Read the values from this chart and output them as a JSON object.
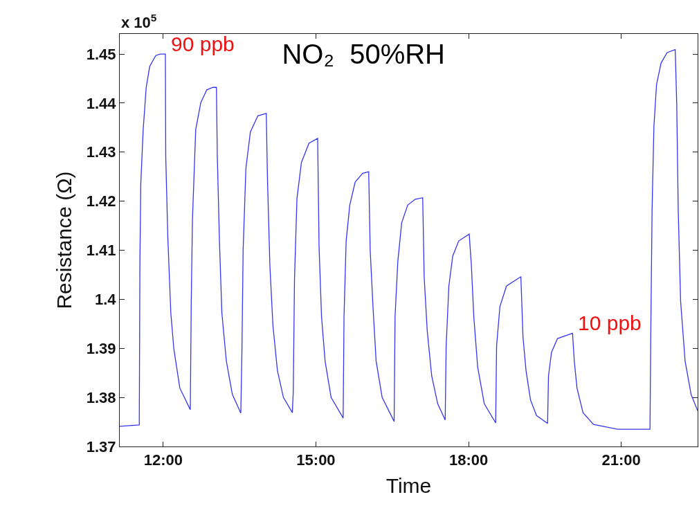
{
  "chart_data": {
    "type": "line",
    "title": "NO₂  50%RH",
    "xlabel": "Time",
    "ylabel": "Resistance (Ω)",
    "annotations": [
      "x 10$^{5}$",
      {
        "text": "90 ppb",
        "x": 12.042,
        "y": 1.45
      },
      {
        "text": "10 ppb",
        "x": 20.042,
        "y": 1.3931
      }
    ],
    "xlim": [
      11.145,
      22.5
    ],
    "ylim": [
      1.37,
      1.4541
    ],
    "xticks": [
      {
        "value": 12,
        "label": "12:00"
      },
      {
        "value": 15,
        "label": "15:00"
      },
      {
        "value": 18,
        "label": "18:00"
      },
      {
        "value": 21,
        "label": "21:00"
      }
    ],
    "yticks": [
      1.37,
      1.38,
      1.39,
      1.4,
      1.41,
      1.42,
      1.43,
      1.44,
      1.45
    ],
    "grid": false,
    "marker": "none",
    "line_style": "solid",
    "series": [
      {
        "color": "#3535f0",
        "x": [
          11.145,
          11.529,
          11.541,
          11.559,
          11.606,
          11.665,
          11.735,
          11.853,
          11.942,
          12.042,
          12.049,
          12.09,
          12.149,
          12.208,
          12.326,
          12.532,
          12.55,
          12.574,
          12.638,
          12.738,
          12.856,
          12.974,
          13.045,
          13.062,
          13.104,
          13.152,
          13.24,
          13.358,
          13.524,
          13.547,
          13.57,
          13.624,
          13.712,
          13.859,
          14.024,
          14.049,
          14.095,
          14.155,
          14.243,
          14.361,
          14.537,
          14.555,
          14.579,
          14.627,
          14.715,
          14.863,
          15.034,
          15.062,
          15.11,
          15.18,
          15.298,
          15.535,
          15.552,
          15.594,
          15.665,
          15.771,
          15.919,
          16.037,
          16.066,
          16.125,
          16.183,
          16.301,
          16.537,
          16.555,
          16.609,
          16.685,
          16.803,
          16.951,
          17.098,
          17.127,
          17.187,
          17.275,
          17.393,
          17.54,
          17.559,
          17.612,
          17.688,
          17.806,
          18.012,
          18.054,
          18.102,
          18.178,
          18.308,
          18.532,
          18.55,
          18.615,
          18.744,
          19.027,
          19.069,
          19.128,
          19.216,
          19.334,
          19.552,
          19.57,
          19.629,
          19.747,
          20.042,
          20.077,
          20.13,
          20.248,
          20.454,
          20.927,
          21.564,
          21.582,
          21.605,
          21.641,
          21.693,
          21.783,
          21.901,
          22.06,
          22.09,
          22.119,
          22.166,
          22.254,
          22.372,
          22.5
        ],
        "values": [
          1.3741,
          1.3744,
          1.407,
          1.4236,
          1.4346,
          1.4432,
          1.4475,
          1.4497,
          1.45,
          1.45,
          1.4291,
          1.4126,
          1.3972,
          1.3899,
          1.3819,
          1.3775,
          1.3993,
          1.4163,
          1.4346,
          1.4401,
          1.4427,
          1.4432,
          1.4432,
          1.4294,
          1.4119,
          1.3972,
          1.3874,
          1.3806,
          1.3768,
          1.3899,
          1.4101,
          1.4267,
          1.4341,
          1.4374,
          1.4379,
          1.4242,
          1.407,
          1.3947,
          1.3855,
          1.38,
          1.3769,
          1.3813,
          1.404,
          1.4205,
          1.4279,
          1.4318,
          1.4328,
          1.4106,
          1.3965,
          1.3874,
          1.38,
          1.3758,
          1.3965,
          1.4119,
          1.4192,
          1.4239,
          1.4257,
          1.426,
          1.4101,
          1.3978,
          1.3874,
          1.38,
          1.3751,
          1.3965,
          1.4077,
          1.4156,
          1.4192,
          1.4204,
          1.4207,
          1.4046,
          1.3936,
          1.3844,
          1.3787,
          1.3754,
          1.3905,
          1.4027,
          1.4088,
          1.4119,
          1.4133,
          1.407,
          1.3965,
          1.3862,
          1.3787,
          1.3748,
          1.3905,
          1.3985,
          1.4027,
          1.4046,
          1.3923,
          1.3855,
          1.3795,
          1.3763,
          1.3747,
          1.3844,
          1.3892,
          1.392,
          1.3931,
          1.3874,
          1.3819,
          1.3769,
          1.3745,
          1.3735,
          1.3735,
          1.3954,
          1.4181,
          1.4352,
          1.4438,
          1.4482,
          1.4503,
          1.4509,
          1.4396,
          1.4181,
          1.3996,
          1.3874,
          1.3806,
          1.3773
        ]
      }
    ]
  }
}
